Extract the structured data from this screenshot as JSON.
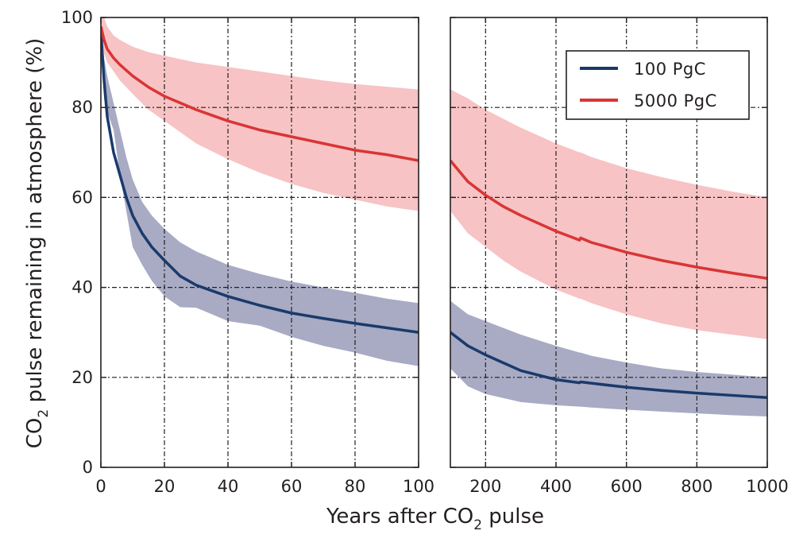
{
  "chart_data": {
    "type": "line",
    "xlabel_parts": [
      "Years after CO",
      "2",
      " pulse"
    ],
    "ylabel_parts": [
      "CO",
      "2",
      " pulse remaining in atmosphere (%)"
    ],
    "ylim": [
      0,
      100
    ],
    "yticks": [
      0,
      20,
      40,
      60,
      80,
      100
    ],
    "grid": true,
    "legend_position": "top-right of right panel",
    "colors": {
      "100 PgC": "#1b3a6b",
      "100 PgC band": "#a8abc3",
      "5000 PgC": "#d93535",
      "5000 PgC band": "#f7c3c4"
    },
    "panels": [
      {
        "xlim": [
          0,
          100
        ],
        "xticks": [
          0,
          20,
          40,
          60,
          80,
          100
        ],
        "series": [
          {
            "name": "100 PgC",
            "x": [
              0,
              1,
              2,
              4,
              6,
              8,
              10,
              13,
              16,
              20,
              25,
              30,
              40,
              50,
              60,
              70,
              80,
              90,
              100
            ],
            "y": [
              97,
              86,
              78,
              70,
              65,
              60,
              56,
              52,
              49,
              46,
              42.5,
              40.5,
              38,
              36,
              34.3,
              33.1,
              32,
              31,
              30
            ],
            "band_upper": [
              97,
              91,
              87,
              81,
              75,
              69,
              64,
              59,
              56,
              53,
              50,
              48,
              45,
              43,
              41.3,
              40,
              38.8,
              37.5,
              36.5
            ],
            "band_lower": [
              97,
              82,
              79,
              75,
              65,
              57,
              49,
              45,
              41.5,
              38,
              35.6,
              35.5,
              32.5,
              31.5,
              29,
              27,
              25.5,
              23.7,
              22.5
            ]
          },
          {
            "name": "5000 PgC",
            "x": [
              0,
              1,
              2,
              4,
              6,
              10,
              15,
              20,
              30,
              40,
              50,
              60,
              70,
              80,
              90,
              100
            ],
            "y": [
              98,
              95,
              93,
              91,
              89.5,
              87,
              84.5,
              82.5,
              79.5,
              77,
              75,
              73.5,
              72,
              70.5,
              69.5,
              68.2
            ],
            "band_upper": [
              100,
              100,
              98,
              96,
              95,
              93.5,
              92.3,
              91.5,
              90,
              89,
              88,
              87,
              86,
              85.2,
              84.6,
              84
            ],
            "band_lower": [
              97,
              92,
              90,
              88,
              86,
              83,
              79.5,
              77,
              72,
              68.5,
              65.5,
              63,
              61,
              59.5,
              58,
              57
            ]
          }
        ]
      },
      {
        "xlim": [
          100,
          1000
        ],
        "xticks": [
          200,
          400,
          600,
          800,
          1000
        ],
        "series": [
          {
            "name": "100 PgC",
            "x": [
              100,
              150,
              200,
              300,
              400,
              467,
              470,
              500,
              600,
              700,
              800,
              900,
              1000
            ],
            "y": [
              30,
              27,
              25,
              21.5,
              19.5,
              18.8,
              19,
              18.7,
              17.8,
              17.1,
              16.5,
              16,
              15.5
            ],
            "band_upper": [
              37,
              34,
              32.5,
              29.5,
              27,
              25.5,
              25.5,
              24.8,
              23.3,
              22,
              21.2,
              20.6,
              20
            ],
            "band_lower": [
              22,
              18,
              16.3,
              14.5,
              13.8,
              13.5,
              13.5,
              13.3,
              12.8,
              12.4,
              12,
              11.6,
              11.3
            ]
          },
          {
            "name": "5000 PgC",
            "x": [
              100,
              150,
              200,
              250,
              300,
              400,
              467,
              470,
              500,
              600,
              700,
              800,
              900,
              1000
            ],
            "y": [
              68.2,
              63.5,
              60.5,
              58,
              56,
              52.5,
              50.5,
              51,
              50,
              47.8,
              46,
              44.5,
              43.2,
              42
            ],
            "band_upper": [
              84,
              82,
              79.5,
              77.5,
              75.5,
              72,
              70,
              70,
              69,
              66.5,
              64.5,
              62.8,
              61.3,
              60
            ],
            "band_lower": [
              57,
              52,
              49,
              46,
              43.5,
              39.5,
              37.5,
              37.5,
              36.5,
              34,
              32,
              30.5,
              29.5,
              28.5
            ]
          }
        ]
      }
    ],
    "legend": [
      {
        "label": "100 PgC",
        "color": "#1b3a6b"
      },
      {
        "label": "5000 PgC",
        "color": "#d93535"
      }
    ]
  }
}
